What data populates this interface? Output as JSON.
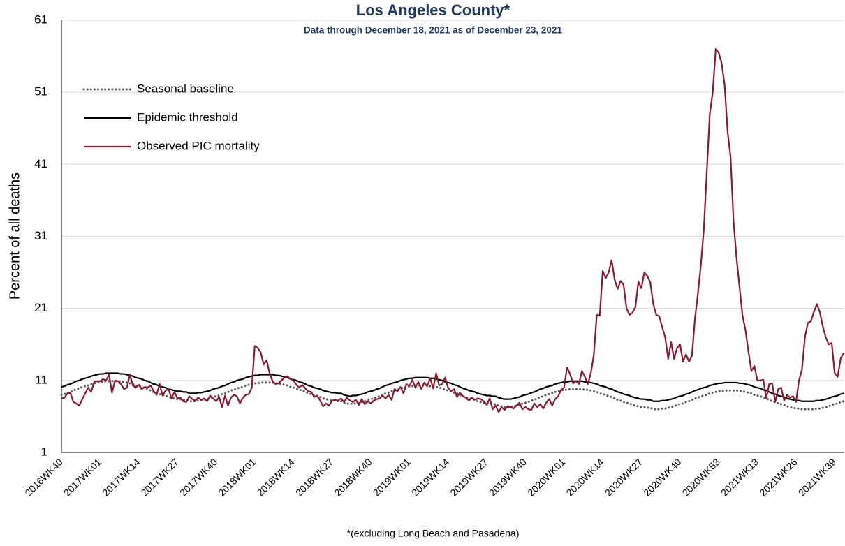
{
  "chart_data": {
    "type": "line",
    "title": "Los Angeles County*",
    "subtitle": "Data through December 18, 2021 as of December 23, 2021",
    "y_label": "Percent of all deaths",
    "footnote": "*(excluding  Long Beach and Pasadena)",
    "ylim": [
      1,
      61
    ],
    "yticks": [
      1,
      11,
      21,
      31,
      41,
      51,
      61
    ],
    "grid": true,
    "legend": "upper left",
    "categories": [
      "2016WK40",
      null,
      null,
      null,
      null,
      null,
      null,
      null,
      null,
      null,
      null,
      null,
      null,
      "2017WK01",
      null,
      null,
      null,
      null,
      null,
      null,
      null,
      null,
      null,
      null,
      null,
      null,
      "2017WK14",
      null,
      null,
      null,
      null,
      null,
      null,
      null,
      null,
      null,
      null,
      null,
      null,
      "2017WK27",
      null,
      null,
      null,
      null,
      null,
      null,
      null,
      null,
      null,
      null,
      null,
      null,
      "2017WK40",
      null,
      null,
      null,
      null,
      null,
      null,
      null,
      null,
      null,
      null,
      null,
      null,
      "2018WK01",
      null,
      null,
      null,
      null,
      null,
      null,
      null,
      null,
      null,
      null,
      null,
      null,
      "2018WK14",
      null,
      null,
      null,
      null,
      null,
      null,
      null,
      null,
      null,
      null,
      null,
      null,
      "2018WK27",
      null,
      null,
      null,
      null,
      null,
      null,
      null,
      null,
      null,
      null,
      null,
      null,
      "2018WK40",
      null,
      null,
      null,
      null,
      null,
      null,
      null,
      null,
      null,
      null,
      null,
      null,
      "2019WK01",
      null,
      null,
      null,
      null,
      null,
      null,
      null,
      null,
      null,
      null,
      null,
      null,
      "2019WK14",
      null,
      null,
      null,
      null,
      null,
      null,
      null,
      null,
      null,
      null,
      null,
      null,
      "2019WK27",
      null,
      null,
      null,
      null,
      null,
      null,
      null,
      null,
      null,
      null,
      null,
      null,
      "2019WK40",
      null,
      null,
      null,
      null,
      null,
      null,
      null,
      null,
      null,
      null,
      null,
      null,
      "2020WK01",
      null,
      null,
      null,
      null,
      null,
      null,
      null,
      null,
      null,
      null,
      null,
      null,
      "2020WK14",
      null,
      null,
      null,
      null,
      null,
      null,
      null,
      null,
      null,
      null,
      null,
      null,
      "2020WK27",
      null,
      null,
      null,
      null,
      null,
      null,
      null,
      null,
      null,
      null,
      null,
      null,
      "2020WK40",
      null,
      null,
      null,
      null,
      null,
      null,
      null,
      null,
      null,
      null,
      null,
      null,
      "2020WK53",
      null,
      null,
      null,
      null,
      null,
      null,
      null,
      null,
      null,
      null,
      null,
      null,
      "2021WK13",
      null,
      null,
      null,
      null,
      null,
      null,
      null,
      null,
      null,
      null,
      null,
      null,
      "2021WK26",
      null,
      null,
      null,
      null,
      null,
      null,
      null,
      null,
      null,
      null,
      null,
      null,
      "2021WK39",
      null,
      null,
      null
    ],
    "series": [
      {
        "name": "Seasonal baseline",
        "color": "#595959",
        "line_style": "dotted",
        "values": [
          9.0,
          9.1,
          9.3,
          9.4,
          9.6,
          9.8,
          9.9,
          10.1,
          10.2,
          10.3,
          10.5,
          10.6,
          10.7,
          10.8,
          10.8,
          10.9,
          10.9,
          10.9,
          10.9,
          10.9,
          10.8,
          10.8,
          10.7,
          10.6,
          10.5,
          10.3,
          10.2,
          10.1,
          9.9,
          9.8,
          9.6,
          9.4,
          9.3,
          9.1,
          9.0,
          8.9,
          8.7,
          8.6,
          8.5,
          8.4,
          8.4,
          8.3,
          8.3,
          8.1,
          8.1,
          8.1,
          8.2,
          8.2,
          8.3,
          8.4,
          8.5,
          8.7,
          8.8,
          8.9,
          9.1,
          9.2,
          9.4,
          9.6,
          9.7,
          9.9,
          10.0,
          10.1,
          10.3,
          10.4,
          10.5,
          10.6,
          10.6,
          10.7,
          10.7,
          10.7,
          10.7,
          10.7,
          10.6,
          10.6,
          10.5,
          10.4,
          10.3,
          10.1,
          10.0,
          9.9,
          9.7,
          9.6,
          9.4,
          9.2,
          9.1,
          8.9,
          8.8,
          8.7,
          8.5,
          8.4,
          8.3,
          8.2,
          8.2,
          8.1,
          8.1,
          7.9,
          7.8,
          7.7,
          7.8,
          7.8,
          7.9,
          8.0,
          8.1,
          8.3,
          8.4,
          8.5,
          8.7,
          8.8,
          9.0,
          9.2,
          9.3,
          9.5,
          9.6,
          9.7,
          9.9,
          10.0,
          10.1,
          10.2,
          10.2,
          10.3,
          10.3,
          10.3,
          10.3,
          10.3,
          10.2,
          10.2,
          10.1,
          10.0,
          9.9,
          9.7,
          9.6,
          9.5,
          9.3,
          9.2,
          9.0,
          8.8,
          8.7,
          8.5,
          8.4,
          8.3,
          8.1,
          8.0,
          7.9,
          7.8,
          7.8,
          7.7,
          7.7,
          7.5,
          7.4,
          7.3,
          7.3,
          7.3,
          7.4,
          7.5,
          7.6,
          7.8,
          7.9,
          8.0,
          8.2,
          8.3,
          8.5,
          8.7,
          8.8,
          9.0,
          9.1,
          9.2,
          9.4,
          9.5,
          9.6,
          9.7,
          9.7,
          9.8,
          9.8,
          9.8,
          9.8,
          9.8,
          9.7,
          9.7,
          9.6,
          9.5,
          9.4,
          9.2,
          9.1,
          9.0,
          8.8,
          8.7,
          8.5,
          8.3,
          8.2,
          8.0,
          7.9,
          7.8,
          7.6,
          7.5,
          7.4,
          7.3,
          7.3,
          7.2,
          7.2,
          7.0,
          7.0,
          7.0,
          7.1,
          7.1,
          7.2,
          7.3,
          7.4,
          7.6,
          7.7,
          7.8,
          8.0,
          8.1,
          8.3,
          8.5,
          8.6,
          8.8,
          8.9,
          9.0,
          9.2,
          9.3,
          9.4,
          9.5,
          9.5,
          9.6,
          9.6,
          9.6,
          9.6,
          9.6,
          9.5,
          9.5,
          9.4,
          9.3,
          9.2,
          9.0,
          8.9,
          8.8,
          8.6,
          8.5,
          8.3,
          8.1,
          8.0,
          7.8,
          7.7,
          7.6,
          7.4,
          7.3,
          7.2,
          7.1,
          7.1,
          7.0,
          7.0,
          7.0,
          7.0,
          7.0,
          7.1,
          7.1,
          7.2,
          7.3,
          7.4,
          7.6,
          7.7,
          7.8,
          8.0,
          8.1
        ]
      },
      {
        "name": "Epidemic threshold",
        "color": "#000000",
        "line_style": "solid",
        "values": [
          10.1,
          10.2,
          10.4,
          10.5,
          10.7,
          10.9,
          11.0,
          11.2,
          11.3,
          11.4,
          11.6,
          11.7,
          11.8,
          11.9,
          11.9,
          12.0,
          12.0,
          12.0,
          12.0,
          12.0,
          11.9,
          11.9,
          11.8,
          11.7,
          11.6,
          11.4,
          11.3,
          11.2,
          11.0,
          10.9,
          10.7,
          10.5,
          10.4,
          10.2,
          10.1,
          10.0,
          9.8,
          9.7,
          9.6,
          9.5,
          9.5,
          9.4,
          9.4,
          9.2,
          9.2,
          9.2,
          9.3,
          9.3,
          9.4,
          9.5,
          9.6,
          9.8,
          9.9,
          10.0,
          10.2,
          10.3,
          10.5,
          10.7,
          10.8,
          11.0,
          11.1,
          11.2,
          11.4,
          11.5,
          11.6,
          11.7,
          11.7,
          11.8,
          11.8,
          11.8,
          11.8,
          11.8,
          11.7,
          11.7,
          11.6,
          11.5,
          11.4,
          11.2,
          11.1,
          11.0,
          10.8,
          10.7,
          10.5,
          10.3,
          10.2,
          10.0,
          9.9,
          9.8,
          9.6,
          9.5,
          9.4,
          9.3,
          9.3,
          9.2,
          9.2,
          9.0,
          8.9,
          8.8,
          8.9,
          8.9,
          9.0,
          9.1,
          9.2,
          9.4,
          9.5,
          9.6,
          9.8,
          9.9,
          10.1,
          10.3,
          10.4,
          10.6,
          10.7,
          10.8,
          11.0,
          11.1,
          11.2,
          11.3,
          11.3,
          11.4,
          11.4,
          11.4,
          11.4,
          11.4,
          11.3,
          11.3,
          11.2,
          11.1,
          11.0,
          10.8,
          10.7,
          10.6,
          10.4,
          10.3,
          10.1,
          9.9,
          9.8,
          9.6,
          9.5,
          9.4,
          9.2,
          9.1,
          9.0,
          8.9,
          8.9,
          8.8,
          8.8,
          8.6,
          8.5,
          8.4,
          8.4,
          8.4,
          8.5,
          8.6,
          8.7,
          8.9,
          9.0,
          9.1,
          9.3,
          9.4,
          9.6,
          9.8,
          9.9,
          10.1,
          10.2,
          10.3,
          10.5,
          10.6,
          10.7,
          10.8,
          10.8,
          10.9,
          10.9,
          10.9,
          10.9,
          10.9,
          10.8,
          10.8,
          10.7,
          10.6,
          10.5,
          10.3,
          10.2,
          10.1,
          9.9,
          9.8,
          9.6,
          9.4,
          9.3,
          9.1,
          9.0,
          8.9,
          8.7,
          8.6,
          8.5,
          8.4,
          8.4,
          8.3,
          8.3,
          8.1,
          8.1,
          8.1,
          8.2,
          8.2,
          8.3,
          8.4,
          8.5,
          8.7,
          8.8,
          8.9,
          9.1,
          9.2,
          9.4,
          9.6,
          9.7,
          9.9,
          10.0,
          10.1,
          10.3,
          10.4,
          10.5,
          10.6,
          10.6,
          10.7,
          10.7,
          10.7,
          10.7,
          10.7,
          10.6,
          10.6,
          10.5,
          10.4,
          10.3,
          10.1,
          10.0,
          9.9,
          9.7,
          9.6,
          9.4,
          9.2,
          9.1,
          8.9,
          8.8,
          8.7,
          8.5,
          8.4,
          8.3,
          8.2,
          8.2,
          8.1,
          8.1,
          8.1,
          8.1,
          8.1,
          8.2,
          8.2,
          8.3,
          8.4,
          8.5,
          8.7,
          8.8,
          8.9,
          9.1,
          9.2
        ]
      },
      {
        "name": "Observed PIC mortality",
        "color": "#8b1a2e",
        "line_style": "solid",
        "values": [
          8.5,
          8.6,
          9.2,
          9.3,
          8.0,
          7.8,
          7.5,
          8.4,
          9.2,
          10.0,
          9.4,
          10.8,
          10.9,
          10.9,
          11.2,
          11.0,
          11.8,
          9.3,
          11.0,
          10.9,
          10.5,
          9.8,
          10.0,
          11.8,
          10.3,
          10.0,
          10.4,
          9.8,
          10.1,
          10.0,
          10.3,
          9.5,
          9.0,
          10.5,
          8.9,
          9.6,
          9.8,
          8.5,
          9.4,
          8.5,
          8.6,
          8.1,
          8.0,
          8.8,
          8.4,
          8.2,
          8.6,
          8.3,
          8.5,
          8.1,
          8.9,
          8.5,
          8.1,
          8.7,
          7.3,
          8.9,
          7.5,
          8.6,
          9.0,
          8.8,
          7.8,
          8.6,
          9.0,
          9.1,
          10.0,
          15.8,
          15.5,
          14.9,
          13.2,
          13.8,
          12.0,
          10.9,
          10.5,
          10.6,
          11.0,
          11.4,
          11.6,
          11.2,
          11.0,
          10.4,
          10.0,
          10.4,
          9.9,
          9.5,
          9.4,
          8.7,
          8.9,
          8.2,
          7.4,
          7.8,
          7.5,
          8.2,
          8.3,
          8.2,
          8.5,
          8.0,
          8.6,
          8.2,
          8.0,
          8.3,
          7.6,
          8.4,
          7.7,
          8.1,
          7.8,
          8.2,
          8.4,
          8.5,
          8.9,
          8.5,
          9.0,
          8.3,
          9.8,
          9.5,
          10.1,
          9.2,
          10.5,
          10.2,
          11.1,
          10.0,
          10.8,
          9.8,
          10.7,
          10.2,
          11.3,
          9.9,
          12.0,
          10.3,
          10.5,
          11.4,
          10.0,
          9.5,
          9.8,
          8.7,
          9.3,
          8.8,
          8.6,
          8.2,
          8.6,
          8.3,
          8.5,
          8.4,
          8.1,
          7.6,
          8.5,
          7.0,
          7.5,
          6.6,
          7.3,
          6.9,
          7.4,
          7.3,
          7.1,
          7.5,
          7.9,
          7.0,
          7.3,
          7.0,
          6.9,
          7.8,
          7.3,
          7.7,
          7.1,
          7.9,
          8.4,
          7.5,
          8.4,
          8.8,
          9.7,
          10.0,
          12.8,
          11.9,
          10.6,
          10.9,
          10.5,
          12.3,
          11.5,
          10.5,
          12.0,
          14.5,
          20.1,
          20.0,
          26.2,
          25.2,
          26.0,
          27.7,
          25.0,
          23.7,
          24.8,
          24.3,
          21.0,
          20.1,
          20.4,
          21.2,
          24.7,
          23.8,
          26.0,
          25.5,
          24.6,
          21.6,
          20.1,
          19.9,
          18.4,
          17.0,
          14.0,
          16.3,
          14.0,
          15.5,
          16.0,
          13.6,
          14.6,
          13.6,
          14.4,
          19.5,
          23.0,
          27.0,
          32.0,
          40.0,
          48.0,
          51.0,
          57.0,
          56.5,
          55.0,
          52.0,
          45.5,
          42.0,
          33.0,
          28.0,
          24.0,
          20.0,
          18.0,
          15.0,
          12.3,
          13.0,
          11.0,
          11.0,
          11.1,
          8.5,
          10.5,
          10.6,
          8.0,
          9.8,
          10.0,
          8.2,
          9.0,
          8.6,
          8.8,
          8.0,
          11.0,
          12.5,
          17.0,
          19.0,
          19.2,
          20.5,
          21.6,
          20.5,
          18.5,
          17.0,
          16.0,
          16.2,
          12.0,
          11.5,
          14.0,
          14.8
        ]
      }
    ]
  }
}
